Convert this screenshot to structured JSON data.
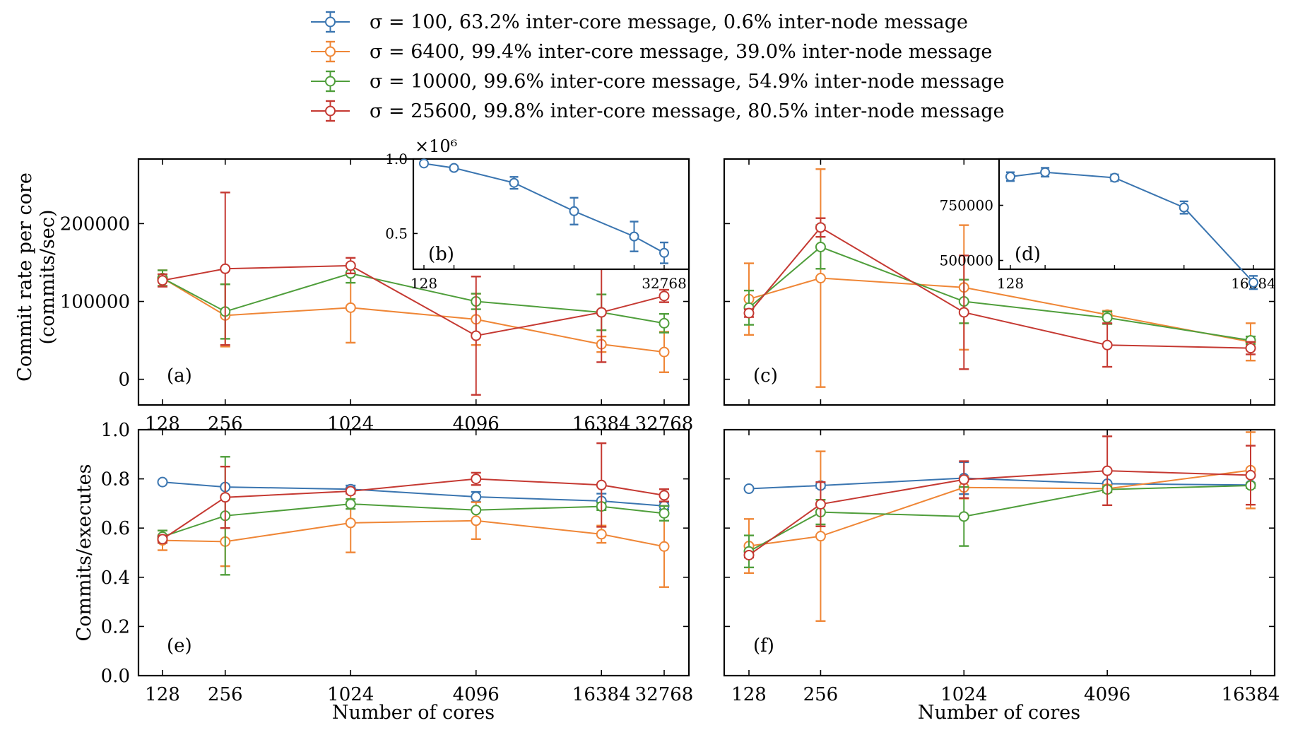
{
  "chart_data": {
    "type": "line",
    "legend": {
      "placement": "top-center",
      "entries": [
        {
          "name": "σ = 100, 63.2% inter-core message, 0.6% inter-node message",
          "color": "#3a75b0"
        },
        {
          "name": "σ = 6400, 99.4% inter-core message, 39.0% inter-node message",
          "color": "#ef8636"
        },
        {
          "name": "σ = 10000, 99.6% inter-core message, 54.9% inter-node message",
          "color": "#4f9e3b"
        },
        {
          "name": "σ = 25600, 99.8% inter-core message, 80.5% inter-node message",
          "color": "#c53932"
        }
      ]
    },
    "axis_labels": {
      "xlabel": "Number of cores",
      "ylabel_top_line1": "Commit rate per core",
      "ylabel_top_line2": "(commits/sec)",
      "ylabel_bottom": "Commits/executes"
    },
    "panels": [
      {
        "id": "a",
        "label": "(a)",
        "xscale": "log2",
        "x": [
          128,
          256,
          1024,
          4096,
          16384,
          32768
        ],
        "xticks": [
          "128",
          "256",
          "1024",
          "4096",
          "16384",
          "32768"
        ],
        "ylim": [
          -33000,
          283000
        ],
        "yticks": [
          {
            "v": 0,
            "t": "0"
          },
          {
            "v": 100000,
            "t": "100000"
          },
          {
            "v": 200000,
            "t": "200000"
          }
        ],
        "series": [
          {
            "legend": 1,
            "values": [
              130000,
              82000,
              92000,
              77000,
              45000,
              35000
            ],
            "err": [
              10000,
              40000,
              45000,
              33000,
              10000,
              26000
            ]
          },
          {
            "legend": 2,
            "values": [
              130000,
              87000,
              136000,
              100000,
              86000,
              72000
            ],
            "err": [
              10000,
              35000,
              12000,
              10000,
              23000,
              12000
            ]
          },
          {
            "legend": 3,
            "values": [
              127000,
              142000,
              146000,
              56000,
              86000,
              107000
            ],
            "err": [
              8000,
              98000,
              10000,
              76000,
              64000,
              8000
            ]
          }
        ]
      },
      {
        "id": "b",
        "label": "(b)",
        "inset": true,
        "xscale": "log2",
        "x": [
          128,
          256,
          1024,
          4096,
          16384,
          32768
        ],
        "xticks": [
          {
            "v": 128,
            "t": "128"
          },
          {
            "v": 32768,
            "t": "32768"
          }
        ],
        "ylim": [
          0.26,
          1.0
        ],
        "yticks": [
          {
            "v": 0.5,
            "t": "0.5"
          },
          {
            "v": 1.0,
            "t": "1.0"
          }
        ],
        "offset_label": "×10⁶",
        "series": [
          {
            "legend": 0,
            "values": [
              0.97,
              0.94,
              0.84,
              0.65,
              0.48,
              0.37
            ],
            "err": [
              0.01,
              0.015,
              0.04,
              0.09,
              0.1,
              0.07
            ]
          }
        ]
      },
      {
        "id": "c",
        "label": "(c)",
        "xscale": "log2",
        "x": [
          128,
          256,
          1024,
          4096,
          16384
        ],
        "ylim": [
          -33000,
          283000
        ],
        "series": [
          {
            "legend": 1,
            "values": [
              103000,
              130000,
              118000,
              83000,
              48000
            ],
            "err": [
              46000,
              140000,
              80000,
              5000,
              24000
            ]
          },
          {
            "legend": 2,
            "values": [
              92000,
              170000,
              100000,
              79000,
              50000
            ],
            "err": [
              22000,
              28000,
              28000,
              8000,
              5000
            ]
          },
          {
            "legend": 3,
            "values": [
              85000,
              195000,
              86000,
              44000,
              40000
            ],
            "err": [
              5000,
              12000,
              73000,
              28000,
              8000
            ]
          }
        ]
      },
      {
        "id": "d",
        "label": "(d)",
        "inset": true,
        "xscale": "log2",
        "x": [
          128,
          256,
          1024,
          4096,
          16384
        ],
        "xticks": [
          {
            "v": 128,
            "t": "128"
          },
          {
            "v": 16384,
            "t": "16384"
          }
        ],
        "ylim": [
          460000,
          960000
        ],
        "yticks": [
          {
            "v": 500000,
            "t": "500000"
          },
          {
            "v": 750000,
            "t": "750000"
          }
        ],
        "series": [
          {
            "legend": 0,
            "values": [
              880000,
              900000,
              875000,
              740000,
              400000
            ],
            "err": [
              20000,
              20000,
              15000,
              28000,
              30000
            ]
          }
        ]
      },
      {
        "id": "e",
        "label": "(e)",
        "xscale": "log2",
        "x": [
          128,
          256,
          1024,
          4096,
          16384,
          32768
        ],
        "xticks": [
          "128",
          "256",
          "1024",
          "4096",
          "16384",
          "32768"
        ],
        "ylim": [
          0.0,
          1.0
        ],
        "yticks": [
          {
            "v": 0.0,
            "t": "0.0"
          },
          {
            "v": 0.2,
            "t": "0.2"
          },
          {
            "v": 0.4,
            "t": "0.4"
          },
          {
            "v": 0.6,
            "t": "0.6"
          },
          {
            "v": 0.8,
            "t": "0.8"
          },
          {
            "v": 1.0,
            "t": "1.0"
          }
        ],
        "series": [
          {
            "legend": 0,
            "values": [
              0.787,
              0.767,
              0.758,
              0.727,
              0.71,
              0.69
            ],
            "err": [
              0.005,
              0.005,
              0.015,
              0.02,
              0.03,
              0.015
            ]
          },
          {
            "legend": 1,
            "values": [
              0.55,
              0.545,
              0.621,
              0.63,
              0.575,
              0.525
            ],
            "err": [
              0.04,
              0.1,
              0.12,
              0.075,
              0.035,
              0.165
            ]
          },
          {
            "legend": 2,
            "values": [
              0.565,
              0.65,
              0.698,
              0.673,
              0.688,
              0.66
            ],
            "err": [
              0.025,
              0.24,
              0.02,
              0.005,
              0.015,
              0.03
            ]
          },
          {
            "legend": 3,
            "values": [
              0.555,
              0.725,
              0.75,
              0.8,
              0.775,
              0.733
            ],
            "err": [
              0.015,
              0.125,
              0.01,
              0.025,
              0.17,
              0.025
            ]
          }
        ]
      },
      {
        "id": "f",
        "label": "(f)",
        "xscale": "log2",
        "x": [
          128,
          256,
          1024,
          4096,
          16384
        ],
        "xticks": [
          "128",
          "256",
          "1024",
          "4096",
          "16384"
        ],
        "ylim": [
          0.0,
          1.0
        ],
        "series": [
          {
            "legend": 0,
            "values": [
              0.76,
              0.773,
              0.803,
              0.78,
              0.775
            ],
            "err": [
              0.005,
              0.01,
              0.065,
              0.005,
              0.005
            ]
          },
          {
            "legend": 1,
            "values": [
              0.527,
              0.567,
              0.765,
              0.76,
              0.835
            ],
            "err": [
              0.11,
              0.345,
              0.045,
              0.015,
              0.155
            ]
          },
          {
            "legend": 2,
            "values": [
              0.505,
              0.665,
              0.647,
              0.757,
              0.773
            ],
            "err": [
              0.065,
              0.05,
              0.12,
              0.01,
              0.01
            ]
          },
          {
            "legend": 3,
            "values": [
              0.49,
              0.697,
              0.797,
              0.833,
              0.815
            ],
            "err": [
              0.01,
              0.09,
              0.075,
              0.14,
              0.12
            ]
          }
        ]
      }
    ]
  }
}
